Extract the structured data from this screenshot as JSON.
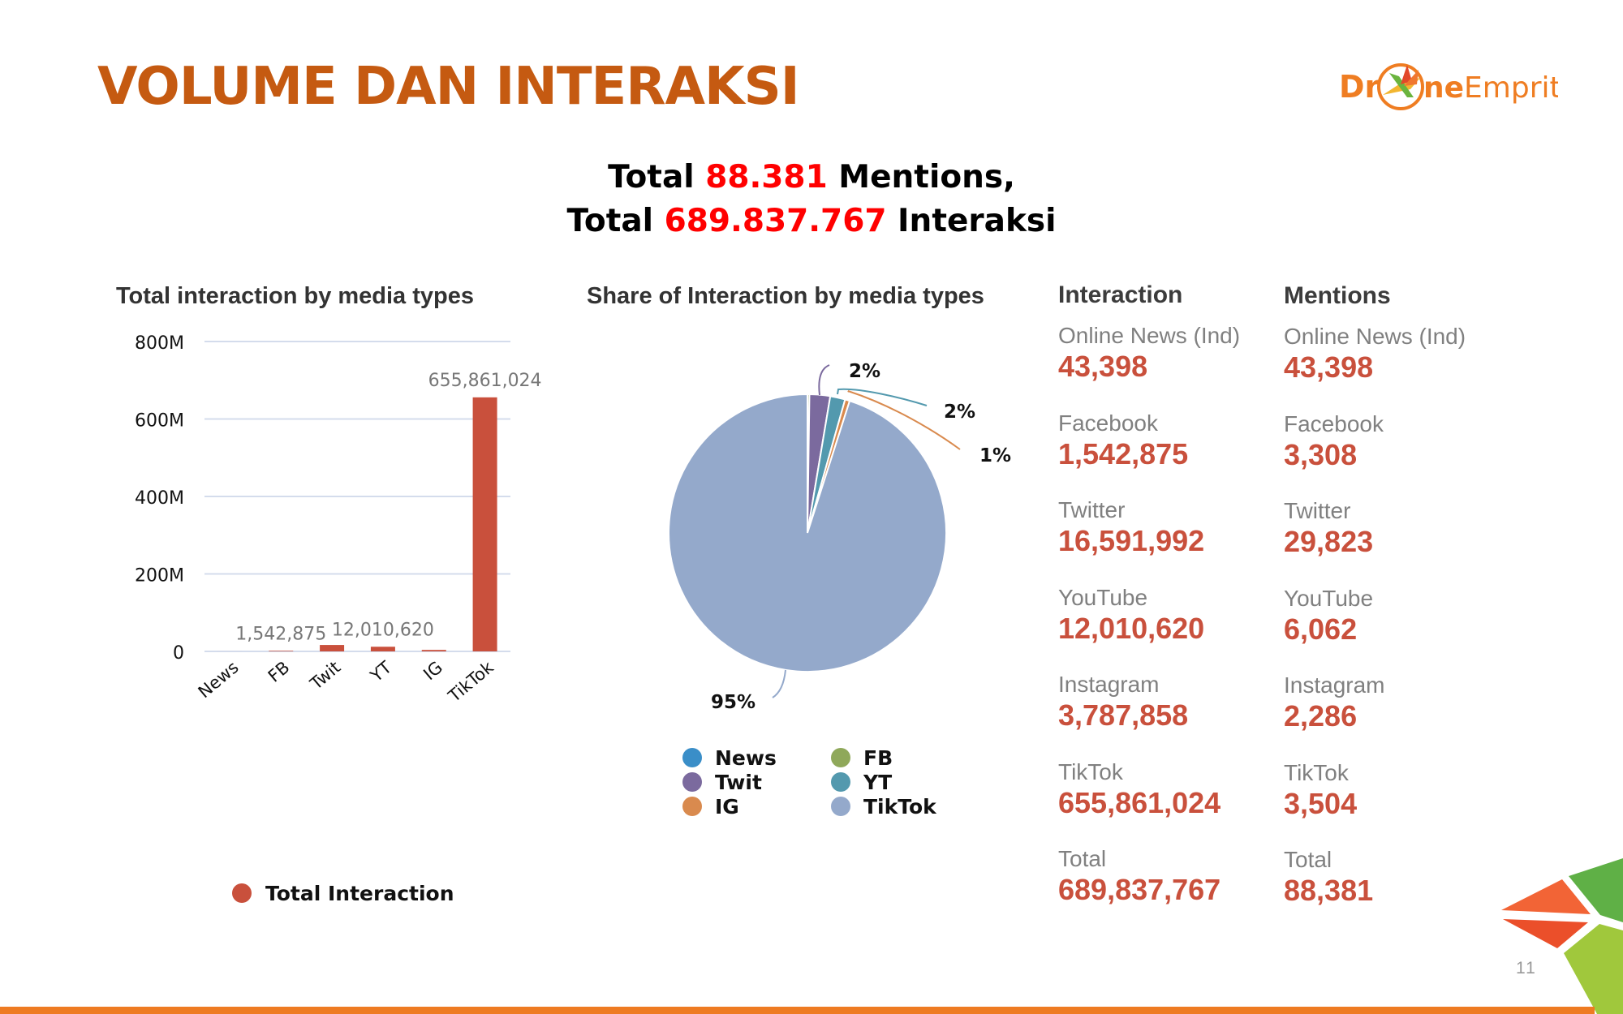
{
  "header": {
    "title": "VOLUME DAN INTERAKSI",
    "logo_text": "DroneEmprit",
    "logo_color": "#ef7d22"
  },
  "summary": {
    "line1_prefix": "Total",
    "line1_value": "88.381",
    "line1_suffix": "Mentions,",
    "line2_prefix": "Total",
    "line2_value": "689.837.767",
    "line2_suffix": "Interaksi"
  },
  "chart_data": [
    {
      "type": "bar",
      "title": "Total interaction by media types",
      "categories": [
        "News",
        "FB",
        "Twit",
        "YT",
        "IG",
        "TikTok"
      ],
      "series": [
        {
          "name": "Total Interaction",
          "color": "#c9503c",
          "values": [
            43398,
            1542875,
            16591992,
            12010620,
            3787858,
            655861024
          ]
        }
      ],
      "data_labels": {
        "1": "1,542,875",
        "3": "12,010,620",
        "5": "655,861,024"
      },
      "yticks": [
        "0",
        "200M",
        "400M",
        "600M",
        "800M"
      ],
      "ylim": [
        0,
        800000000
      ],
      "grid": true,
      "legend": "bottom"
    },
    {
      "type": "pie",
      "title": "Share of Interaction by media types",
      "slices": [
        {
          "name": "News",
          "value": 43398,
          "color": "#3a8ec8",
          "label": ""
        },
        {
          "name": "FB",
          "value": 1542875,
          "color": "#8fa85a",
          "label": ""
        },
        {
          "name": "Twit",
          "value": 16591992,
          "color": "#7b6a9e",
          "label": "2%"
        },
        {
          "name": "YT",
          "value": 12010620,
          "color": "#5399ae",
          "label": "2%"
        },
        {
          "name": "IG",
          "value": 3787858,
          "color": "#d98a4e",
          "label": "1%"
        },
        {
          "name": "TikTok",
          "value": 655861024,
          "color": "#94a9cb",
          "label": "95%"
        }
      ],
      "legend": "bottom"
    }
  ],
  "interaction": {
    "header": "Interaction",
    "items": [
      {
        "label": "Online News (Ind)",
        "value": "43,398"
      },
      {
        "label": "Facebook",
        "value": "1,542,875"
      },
      {
        "label": "Twitter",
        "value": "16,591,992"
      },
      {
        "label": "YouTube",
        "value": "12,010,620"
      },
      {
        "label": "Instagram",
        "value": "3,787,858"
      },
      {
        "label": "TikTok",
        "value": "655,861,024"
      },
      {
        "label": "Total",
        "value": "689,837,767"
      }
    ]
  },
  "mentions": {
    "header": "Mentions",
    "items": [
      {
        "label": "Online News (Ind)",
        "value": "43,398"
      },
      {
        "label": "Facebook",
        "value": "3,308"
      },
      {
        "label": "Twitter",
        "value": "29,823"
      },
      {
        "label": "YouTube",
        "value": "6,062"
      },
      {
        "label": "Instagram",
        "value": "2,286"
      },
      {
        "label": "TikTok",
        "value": "3,504"
      },
      {
        "label": "Total",
        "value": "88,381"
      }
    ]
  },
  "footer": {
    "page_number": "11"
  }
}
